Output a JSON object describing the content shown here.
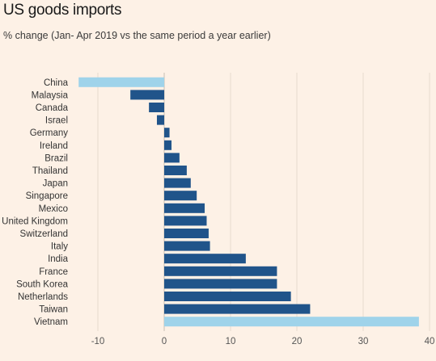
{
  "title": "US goods imports",
  "subtitle": "% change (Jan- Apr 2019 vs the same period a year earlier)",
  "colors": {
    "background": "#fdf1e6",
    "bar": "#20548a",
    "highlight": "#9fd3ea",
    "grid": "#e6dccf",
    "zero": "#c8bfb4"
  },
  "chart_data": {
    "type": "bar",
    "orientation": "horizontal",
    "title": "US goods imports",
    "subtitle": "% change (Jan- Apr 2019 vs the same period a year earlier)",
    "categories": [
      "China",
      "Malaysia",
      "Canada",
      "Israel",
      "Germany",
      "Ireland",
      "Brazil",
      "Thailand",
      "Japan",
      "Singapore",
      "Mexico",
      "United Kingdom",
      "Switzerland",
      "Italy",
      "India",
      "France",
      "South Korea",
      "Netherlands",
      "Taiwan",
      "Vietnam"
    ],
    "values": [
      -12.9,
      -5.1,
      -2.3,
      -1.1,
      0.8,
      1.1,
      2.3,
      3.4,
      4.0,
      4.9,
      6.1,
      6.4,
      6.7,
      6.9,
      12.3,
      17.0,
      17.0,
      19.1,
      22.0,
      38.4
    ],
    "highlighted": [
      "China",
      "Vietnam"
    ],
    "xlim": [
      -13,
      39
    ],
    "xticks": [
      -10,
      0,
      10,
      20,
      30,
      40
    ],
    "grid": true,
    "xlabel": "",
    "ylabel": ""
  }
}
